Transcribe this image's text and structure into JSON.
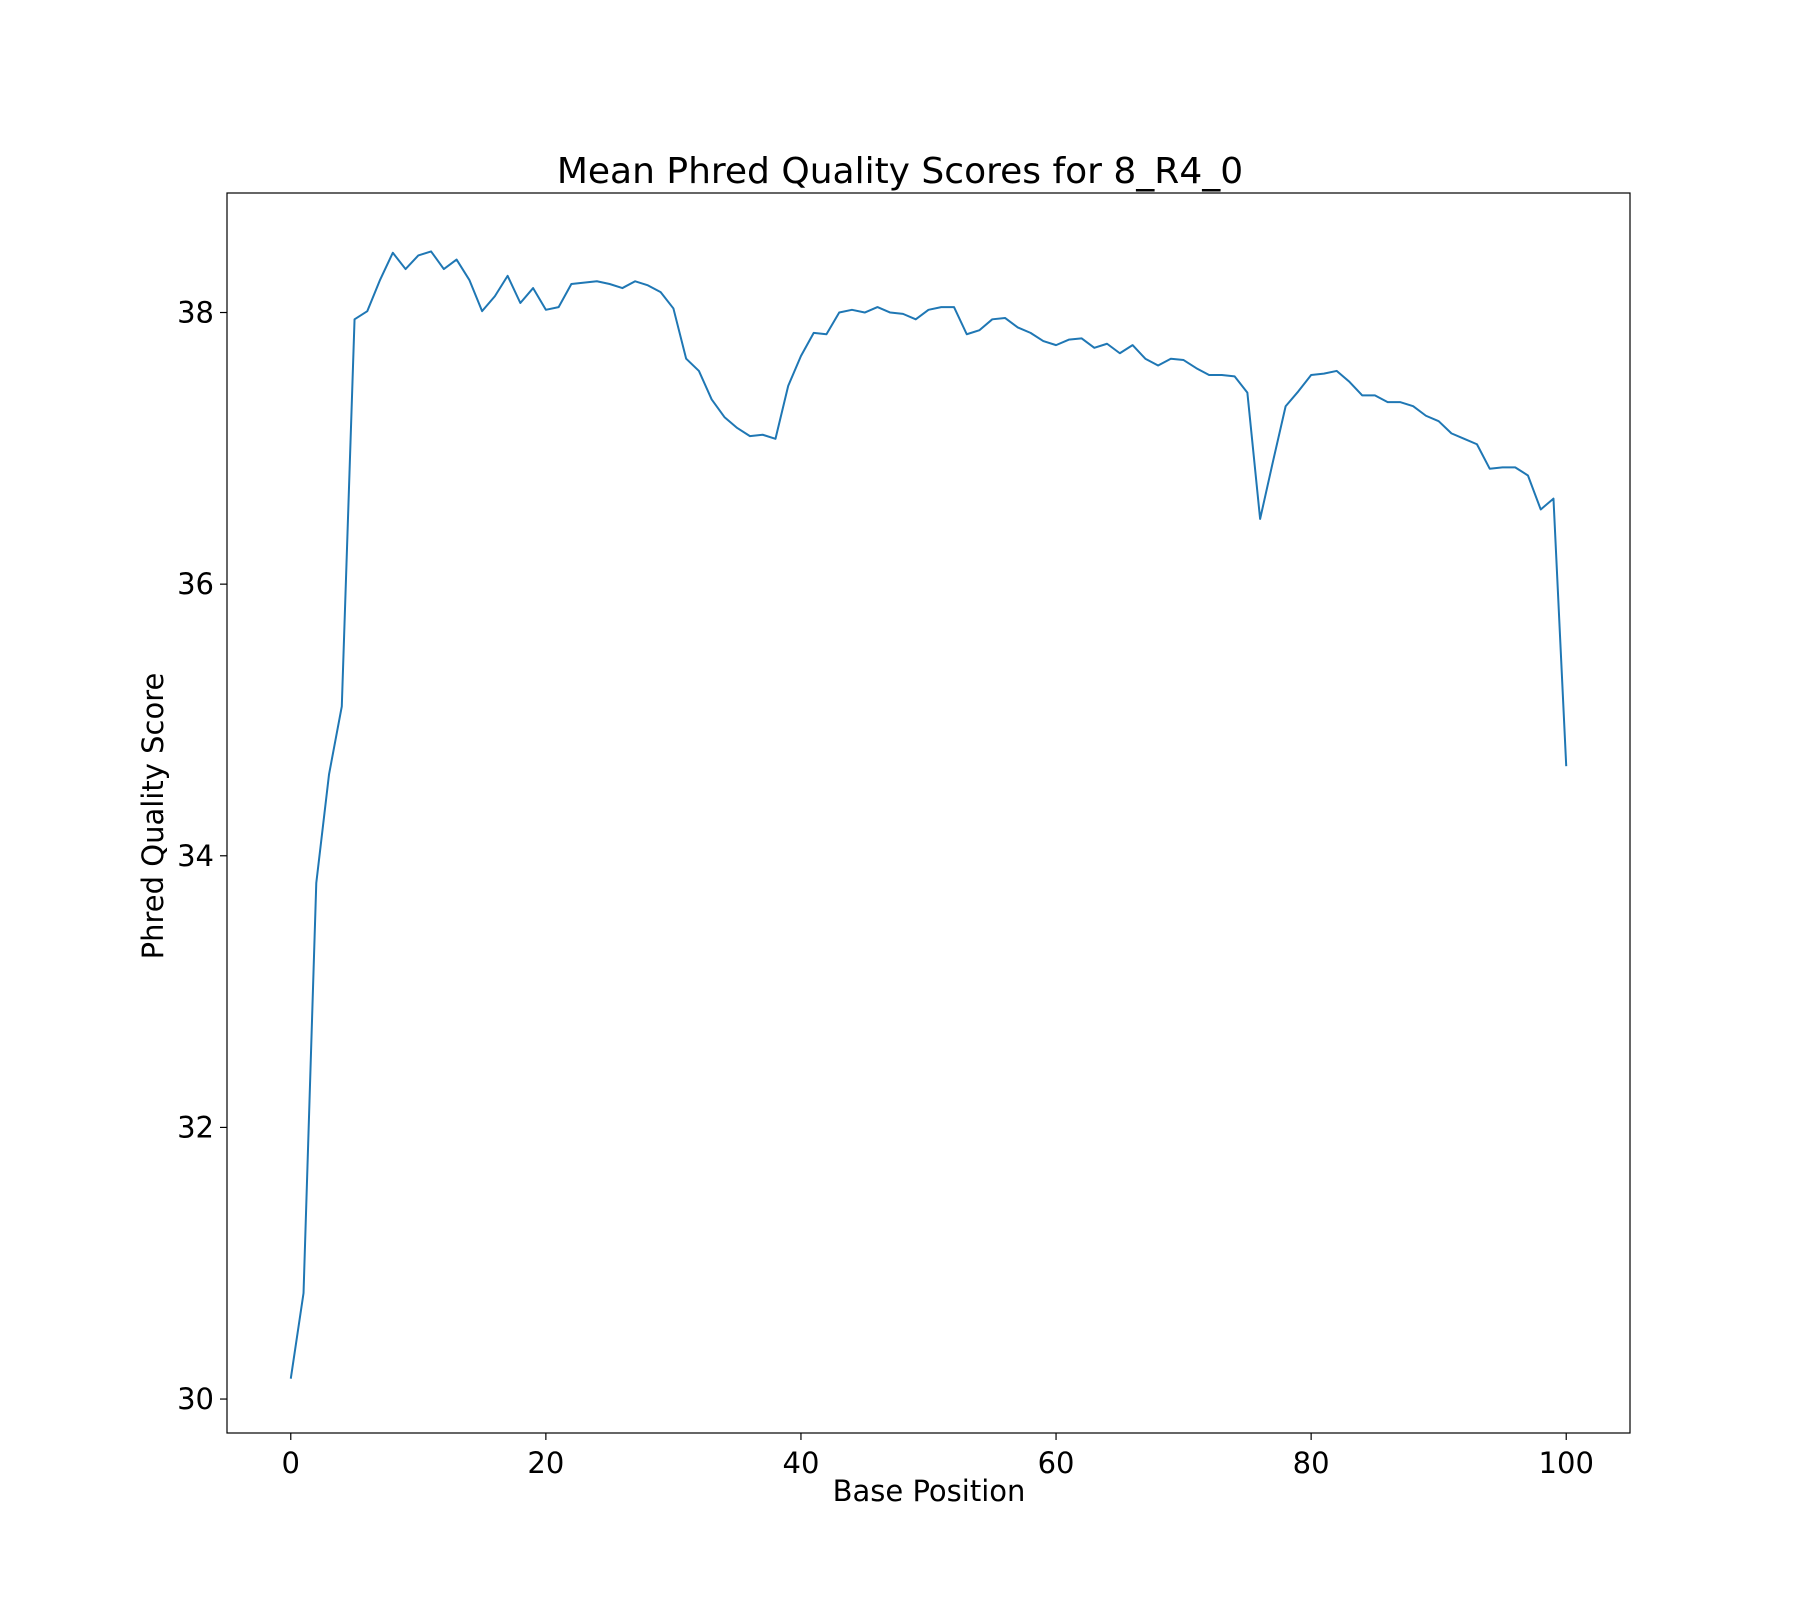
{
  "chart_data": {
    "type": "line",
    "title": "Mean Phred Quality Scores for 8_R4_0",
    "xlabel": "Base Position",
    "ylabel": "Phred Quality Score",
    "xlim": [
      -5,
      105
    ],
    "ylim": [
      29.75,
      38.88
    ],
    "xticks": [
      0,
      20,
      40,
      60,
      80,
      100
    ],
    "yticks": [
      30,
      32,
      34,
      36,
      38
    ],
    "grid": false,
    "legend": "none",
    "series": [
      {
        "color": "#1f77b4",
        "x": [
          0,
          1,
          2,
          3,
          4,
          5,
          6,
          7,
          8,
          9,
          10,
          11,
          12,
          13,
          14,
          15,
          16,
          17,
          18,
          19,
          20,
          21,
          22,
          23,
          24,
          25,
          26,
          27,
          28,
          29,
          30,
          31,
          32,
          33,
          34,
          35,
          36,
          37,
          38,
          39,
          40,
          41,
          42,
          43,
          44,
          45,
          46,
          47,
          48,
          49,
          50,
          51,
          52,
          53,
          54,
          55,
          56,
          57,
          58,
          59,
          60,
          61,
          62,
          63,
          64,
          65,
          66,
          67,
          68,
          69,
          70,
          71,
          72,
          73,
          74,
          75,
          76,
          77,
          78,
          79,
          80,
          81,
          82,
          83,
          84,
          85,
          86,
          87,
          88,
          89,
          90,
          91,
          92,
          93,
          94,
          95,
          96,
          97,
          98,
          99,
          100
        ],
        "values": [
          30.15,
          30.78,
          33.8,
          34.6,
          35.1,
          37.95,
          38.01,
          38.24,
          38.44,
          38.32,
          38.42,
          38.45,
          38.32,
          38.39,
          38.24,
          38.01,
          38.12,
          38.27,
          38.07,
          38.18,
          38.02,
          38.04,
          38.21,
          38.22,
          38.23,
          38.21,
          38.18,
          38.23,
          38.2,
          38.15,
          38.03,
          37.66,
          37.57,
          37.36,
          37.23,
          37.15,
          37.09,
          37.1,
          37.07,
          37.46,
          37.68,
          37.85,
          37.84,
          38.0,
          38.02,
          38.0,
          38.04,
          38.0,
          37.99,
          37.95,
          38.02,
          38.04,
          38.04,
          37.84,
          37.87,
          37.95,
          37.96,
          37.89,
          37.85,
          37.79,
          37.76,
          37.8,
          37.81,
          37.74,
          37.77,
          37.7,
          37.76,
          37.66,
          37.61,
          37.66,
          37.65,
          37.59,
          37.54,
          37.54,
          37.53,
          37.41,
          36.48,
          36.9,
          37.31,
          37.42,
          37.54,
          37.55,
          37.57,
          37.49,
          37.39,
          37.39,
          37.34,
          37.34,
          37.31,
          37.24,
          37.2,
          37.11,
          37.07,
          37.03,
          36.85,
          36.86,
          36.86,
          36.8,
          36.55,
          36.63,
          34.66
        ]
      }
    ]
  }
}
